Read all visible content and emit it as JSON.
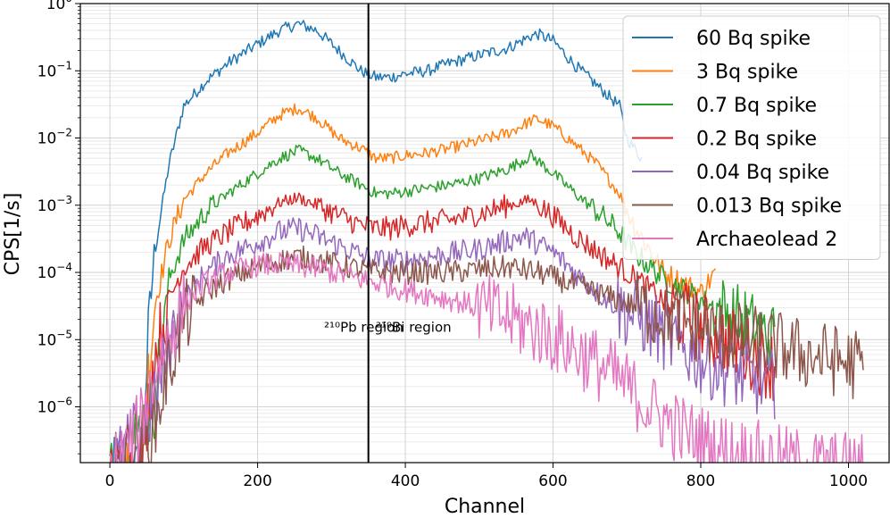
{
  "chart_data": {
    "type": "line",
    "xlabel": "Channel",
    "ylabel": "CPS[1/s]",
    "xlim": [
      -40,
      1055
    ],
    "ylim_log10": [
      -6.83,
      0.0
    ],
    "y_scale": "log",
    "x_ticks": [
      0,
      200,
      400,
      600,
      800,
      1000
    ],
    "y_ticks": [
      {
        "exp": 0,
        "base": "10",
        "sup": "0"
      },
      {
        "exp": -1,
        "base": "10",
        "sup": "−1"
      },
      {
        "exp": -2,
        "base": "10",
        "sup": "−2"
      },
      {
        "exp": -3,
        "base": "10",
        "sup": "−3"
      },
      {
        "exp": -4,
        "base": "10",
        "sup": "−4"
      },
      {
        "exp": -5,
        "base": "10",
        "sup": "−5"
      },
      {
        "exp": -6,
        "base": "10",
        "sup": "−6"
      }
    ],
    "grid": true,
    "legend_position": "top-right",
    "vline_x": 350,
    "annotations": [
      {
        "text": "²¹⁰Pb region",
        "x": 290,
        "y": 1.3e-05
      },
      {
        "text": "²¹⁰Bi region",
        "x": 360,
        "y": 1.3e-05
      }
    ],
    "series": [
      {
        "name": "60 Bq spike",
        "color": "#1f77b4",
        "x": [
          0,
          40,
          60,
          80,
          100,
          130,
          160,
          200,
          230,
          255,
          280,
          310,
          340,
          360,
          380,
          400,
          430,
          460,
          500,
          540,
          570,
          580,
          600,
          630,
          660,
          690,
          700,
          720
        ],
        "y": [
          1e-07,
          1e-07,
          0.0002,
          0.004,
          0.03,
          0.07,
          0.13,
          0.25,
          0.4,
          0.5,
          0.4,
          0.2,
          0.1,
          0.08,
          0.08,
          0.09,
          0.1,
          0.13,
          0.17,
          0.22,
          0.33,
          0.35,
          0.28,
          0.12,
          0.06,
          0.03,
          0.01,
          0.005
        ]
      },
      {
        "name": "3 Bq spike",
        "color": "#ff7f0e",
        "x": [
          0,
          40,
          60,
          80,
          100,
          130,
          160,
          200,
          230,
          255,
          280,
          310,
          340,
          360,
          380,
          400,
          430,
          460,
          500,
          540,
          570,
          580,
          600,
          630,
          660,
          690,
          710,
          750,
          800,
          820
        ],
        "y": [
          1e-07,
          1e-07,
          3e-05,
          0.0003,
          0.0012,
          0.003,
          0.006,
          0.012,
          0.022,
          0.028,
          0.02,
          0.01,
          0.007,
          0.005,
          0.005,
          0.0055,
          0.006,
          0.007,
          0.009,
          0.012,
          0.018,
          0.019,
          0.015,
          0.008,
          0.004,
          0.0015,
          0.0005,
          0.0001,
          5e-05,
          0.0001
        ]
      },
      {
        "name": "0.7 Bq spike",
        "color": "#2ca02c",
        "x": [
          0,
          60,
          80,
          100,
          130,
          160,
          200,
          230,
          255,
          280,
          310,
          340,
          360,
          380,
          400,
          430,
          460,
          500,
          540,
          570,
          600,
          630,
          660,
          690,
          710,
          750,
          800,
          850,
          900
        ],
        "y": [
          1e-07,
          1e-06,
          8e-05,
          0.0003,
          0.0008,
          0.0015,
          0.003,
          0.005,
          0.0065,
          0.005,
          0.003,
          0.002,
          0.0015,
          0.0015,
          0.0016,
          0.0018,
          0.002,
          0.0025,
          0.0035,
          0.0055,
          0.003,
          0.0015,
          0.0008,
          0.0004,
          0.0002,
          8e-05,
          4e-05,
          2e-05,
          1e-05
        ]
      },
      {
        "name": "0.2 Bq spike",
        "color": "#d62728",
        "x": [
          0,
          40,
          60,
          80,
          100,
          130,
          160,
          200,
          230,
          255,
          280,
          310,
          340,
          360,
          380,
          400,
          430,
          460,
          500,
          540,
          570,
          600,
          630,
          660,
          690,
          720,
          760,
          800,
          850,
          900
        ],
        "y": [
          1e-07,
          1e-07,
          5e-06,
          4e-05,
          0.00012,
          0.00025,
          0.0004,
          0.0007,
          0.0011,
          0.0013,
          0.001,
          0.0007,
          0.0005,
          0.00045,
          0.00045,
          0.0005,
          0.00055,
          0.0006,
          0.00075,
          0.001,
          0.0012,
          0.0007,
          0.00035,
          0.0002,
          0.00012,
          7e-05,
          3e-05,
          1.5e-05,
          8e-06,
          4e-06
        ]
      },
      {
        "name": "0.04 Bq spike",
        "color": "#9467bd",
        "x": [
          0,
          60,
          80,
          100,
          130,
          160,
          200,
          230,
          255,
          280,
          310,
          340,
          360,
          380,
          400,
          430,
          460,
          500,
          540,
          560,
          600,
          630,
          660,
          690,
          720,
          760,
          800,
          850,
          900
        ],
        "y": [
          1e-07,
          1e-06,
          8e-06,
          4e-05,
          0.0001,
          0.00018,
          0.00028,
          0.0004,
          0.00045,
          0.00035,
          0.00025,
          0.00018,
          0.00015,
          0.00015,
          0.00015,
          0.00017,
          0.00019,
          0.00022,
          0.0003,
          0.00035,
          0.0002,
          0.0001,
          5e-05,
          3e-05,
          2e-05,
          1e-05,
          5e-06,
          3e-06,
          2e-06
        ]
      },
      {
        "name": "0.013 Bq spike",
        "color": "#8c564b",
        "x": [
          0,
          60,
          80,
          100,
          130,
          160,
          200,
          230,
          255,
          280,
          310,
          340,
          380,
          420,
          460,
          500,
          540,
          580,
          620,
          660,
          700,
          740,
          780,
          820,
          860,
          900,
          940,
          980,
          1020
        ],
        "y": [
          1e-07,
          5e-07,
          4e-06,
          2e-05,
          5e-05,
          8e-05,
          0.00012,
          0.00015,
          0.00017,
          0.00015,
          0.00013,
          0.00011,
          0.0001,
          0.0001,
          0.0001,
          0.00011,
          0.00012,
          0.0001,
          7e-05,
          5e-05,
          3.5e-05,
          2.5e-05,
          1.8e-05,
          1.2e-05,
          1e-05,
          8e-06,
          6e-06,
          5e-06,
          4e-06
        ]
      },
      {
        "name": "Archaeolead 2",
        "color": "#e377c2",
        "x": [
          0,
          40,
          55,
          70,
          90,
          110,
          130,
          160,
          200,
          240,
          280,
          320,
          360,
          400,
          440,
          480,
          520,
          560,
          600,
          640,
          680,
          700,
          740,
          780,
          820,
          860,
          900,
          940,
          980,
          1020
        ],
        "y": [
          1e-07,
          5e-07,
          2e-06,
          6e-06,
          2e-05,
          4.5e-05,
          7e-05,
          0.0001,
          0.00013,
          0.00013,
          0.000115,
          9e-05,
          7e-05,
          5.5e-05,
          4.5e-05,
          3.5e-05,
          2.5e-05,
          1.7e-05,
          1.1e-05,
          6e-06,
          3e-06,
          2e-06,
          8e-07,
          4e-07,
          2.5e-07,
          2e-07,
          1.6e-07,
          1.4e-07,
          1.3e-07,
          1.2e-07
        ]
      }
    ]
  }
}
